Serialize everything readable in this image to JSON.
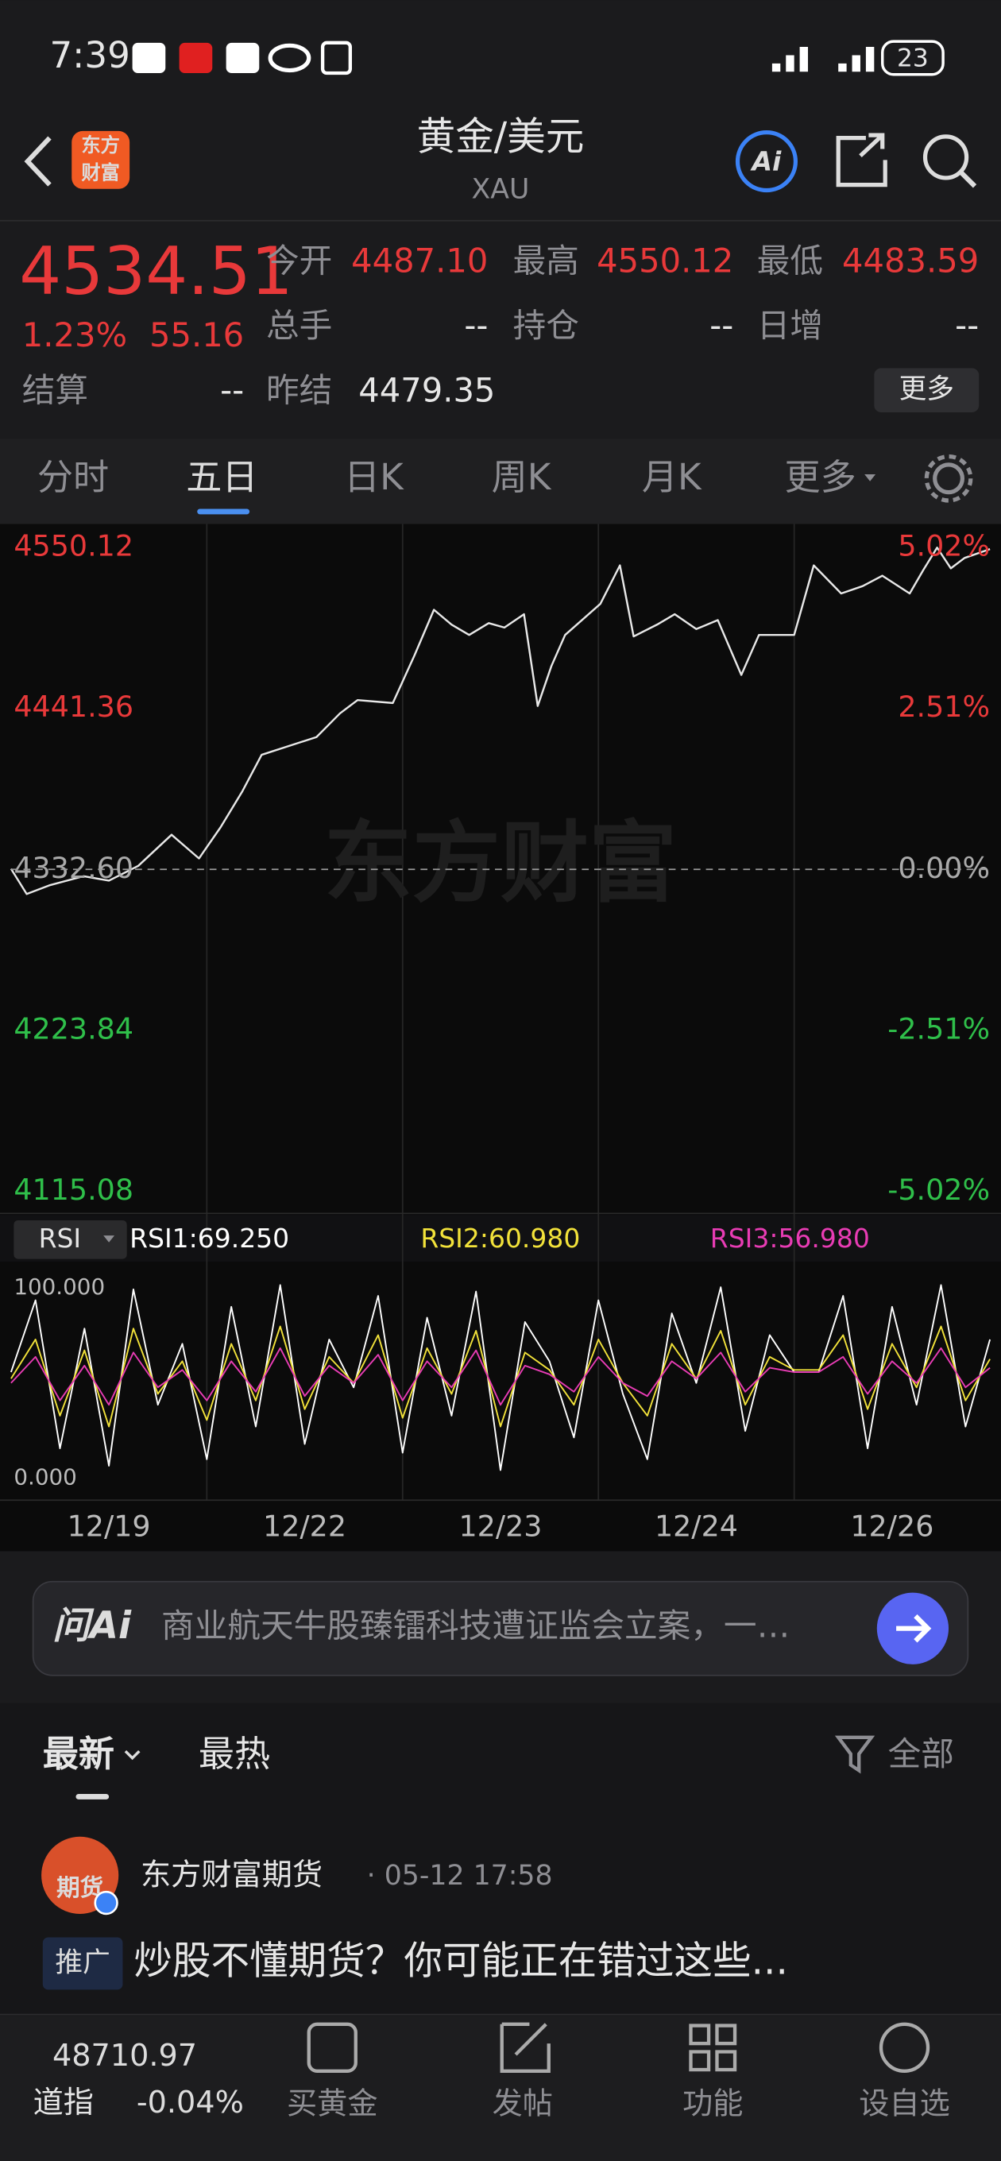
{
  "status_bar": {
    "time": "7:39",
    "battery": "23"
  },
  "header": {
    "app_logo": [
      "东方",
      "财富"
    ],
    "title": "黄金/美元",
    "subtitle": "XAU",
    "ai_icon": "Ai"
  },
  "quote": {
    "price": "4534.51",
    "change_pct": "1.23%",
    "change": "55.16",
    "fields": [
      {
        "label": "今开",
        "value": "4487.10"
      },
      {
        "label": "最高",
        "value": "4550.12"
      },
      {
        "label": "最低",
        "value": "4483.59"
      },
      {
        "label": "总手",
        "value": "--"
      },
      {
        "label": "持仓",
        "value": "--"
      },
      {
        "label": "日增",
        "value": "--"
      },
      {
        "label": "结算",
        "value": "--"
      },
      {
        "label": "昨结",
        "value": "4479.35"
      }
    ],
    "more": "更多"
  },
  "tabs": [
    "分时",
    "五日",
    "日K",
    "周K",
    "月K",
    "更多"
  ],
  "chart_data": [
    {
      "type": "line",
      "color": "#e8e8e8",
      "up_color": "#e8393a",
      "down_color": "#2fbf4a",
      "flat_color": "#aaaaaa",
      "watermark": "东方财富",
      "x": [
        0,
        0.08,
        0.2,
        0.37,
        0.5,
        0.65,
        0.82,
        0.96,
        1.07,
        1.18,
        1.28,
        1.42,
        1.56,
        1.68,
        1.77,
        1.95,
        2.06,
        2.16,
        2.25,
        2.34,
        2.44,
        2.52,
        2.62,
        2.69,
        2.76,
        2.83,
        3.01,
        3.11,
        3.18,
        3.3,
        3.39,
        3.5,
        3.61,
        3.73,
        3.82,
        4.0,
        4.1,
        4.24,
        4.35,
        4.45,
        4.59,
        4.66,
        4.73,
        4.8,
        4.87,
        5.0
      ],
      "values": [
        4333,
        4316,
        4322,
        4328,
        4325,
        4335,
        4356,
        4340,
        4361,
        4385,
        4410,
        4416,
        4422,
        4438,
        4447,
        4445,
        4477,
        4508,
        4498,
        4491,
        4499,
        4496,
        4505,
        4443,
        4470,
        4491,
        4512,
        4538,
        4490,
        4498,
        4505,
        4495,
        4501,
        4464,
        4491,
        4491,
        4538,
        4519,
        4524,
        4531,
        4519,
        4535,
        4550,
        4536,
        4543,
        4549
      ],
      "xlim": [
        0,
        5
      ],
      "xticks": [
        {
          "value": 0.5,
          "label": "12/19"
        },
        {
          "value": 1.5,
          "label": "12/22"
        },
        {
          "value": 2.5,
          "label": "12/23"
        },
        {
          "value": 3.5,
          "label": "12/24"
        },
        {
          "value": 4.5,
          "label": "12/26"
        }
      ],
      "ylim": [
        4115.08,
        4550.12
      ],
      "yticks": [
        4550.12,
        4441.36,
        {
          "value": 4332.6,
          "label": "4332.60"
        },
        4223.84,
        4115.08
      ],
      "y2lim": [
        -5.02,
        5.02
      ],
      "y2ticks": [
        {
          "value": 5.02,
          "label": "5.02%"
        },
        {
          "value": 2.51,
          "label": "2.51%"
        },
        {
          "value": 0,
          "label": "0.00%"
        },
        {
          "value": -2.51,
          "label": "-2.51%"
        },
        {
          "value": -5.02,
          "label": "-5.02%"
        }
      ]
    },
    {
      "type": "line",
      "indicator": "RSI",
      "x": [
        0,
        0.125,
        0.25,
        0.375,
        0.5,
        0.625,
        0.75,
        0.875,
        1,
        1.125,
        1.25,
        1.375,
        1.5,
        1.625,
        1.75,
        1.875,
        2,
        2.125,
        2.25,
        2.375,
        2.5,
        2.625,
        2.75,
        2.875,
        3,
        3.125,
        3.25,
        3.375,
        3.5,
        3.625,
        3.75,
        3.875,
        4,
        4.125,
        4.25,
        4.375,
        4.5,
        4.625,
        4.75,
        4.875,
        5
      ],
      "series": [
        {
          "name": "RSI1:69.250",
          "color": "#ffffff",
          "values": [
            55,
            88,
            20,
            75,
            12,
            93,
            40,
            68,
            15,
            85,
            30,
            95,
            22,
            70,
            48,
            90,
            18,
            80,
            35,
            92,
            10,
            78,
            60,
            25,
            88,
            45,
            15,
            82,
            50,
            94,
            28,
            72,
            55,
            55,
            90,
            20,
            85,
            40,
            95,
            30,
            70
          ]
        },
        {
          "name": "RSI2:60.980",
          "color": "#f2e23a",
          "values": [
            52,
            70,
            35,
            65,
            30,
            75,
            45,
            60,
            33,
            68,
            42,
            76,
            38,
            62,
            50,
            72,
            34,
            66,
            45,
            74,
            30,
            64,
            56,
            40,
            70,
            50,
            35,
            68,
            52,
            74,
            40,
            62,
            56,
            56,
            72,
            38,
            68,
            48,
            76,
            42,
            61
          ]
        },
        {
          "name": "RSI3:56.980",
          "color": "#e83cb4",
          "values": [
            50,
            62,
            42,
            58,
            40,
            64,
            48,
            56,
            42,
            60,
            46,
            66,
            44,
            58,
            50,
            63,
            42,
            60,
            48,
            65,
            40,
            58,
            54,
            46,
            62,
            50,
            44,
            60,
            52,
            64,
            46,
            57,
            55,
            55,
            62,
            45,
            60,
            50,
            66,
            48,
            57
          ]
        }
      ],
      "xlim": [
        0,
        5
      ],
      "ylim": [
        0,
        100
      ],
      "yticks": [
        {
          "value": 100,
          "label": "100.000"
        },
        {
          "value": 0,
          "label": "0.000"
        }
      ]
    }
  ],
  "ai_bar": {
    "logo": "问Ai",
    "text": "商业航天牛股臻镭科技遭证监会立案，一…"
  },
  "feed": {
    "tabs": [
      "最新",
      "最热"
    ],
    "filter": "全部",
    "post": {
      "avatar": "期货",
      "author": "东方财富期货",
      "time": "· 05-12 17:58",
      "badge": "推广",
      "text": "炒股不懂期货？你可能正在错过这些..."
    }
  },
  "bottom_nav": {
    "index_value": "48710.97",
    "index_name": "道指",
    "index_change": "-0.04%",
    "items": [
      "买黄金",
      "发帖",
      "功能",
      "设自选"
    ]
  }
}
